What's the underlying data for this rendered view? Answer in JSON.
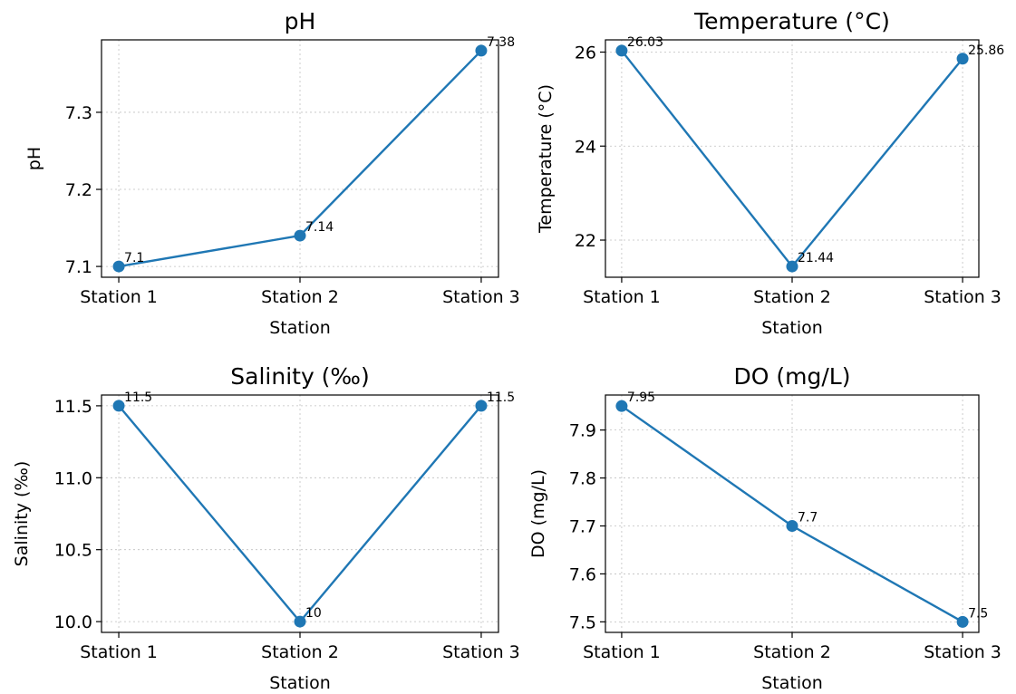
{
  "figure": {
    "line_color": "#1f77b4",
    "grid": true
  },
  "chart_data": [
    {
      "type": "line",
      "title": "pH",
      "xlabel": "Station",
      "ylabel": "pH",
      "categories": [
        "Station 1",
        "Station 2",
        "Station 3"
      ],
      "values": [
        7.1,
        7.14,
        7.38
      ],
      "data_labels": [
        "7.1",
        "7.14",
        "7.38"
      ],
      "ylim": [
        7.086,
        7.394
      ],
      "yticks": [
        7.1,
        7.2,
        7.3
      ],
      "ytick_labels": [
        "7.1",
        "7.2",
        "7.3"
      ]
    },
    {
      "type": "line",
      "title": "Temperature (°C)",
      "xlabel": "Station",
      "ylabel": "Temperature (°C)",
      "categories": [
        "Station 1",
        "Station 2",
        "Station 3"
      ],
      "values": [
        26.03,
        21.44,
        25.86
      ],
      "data_labels": [
        "26.03",
        "21.44",
        "25.86"
      ],
      "ylim": [
        21.21,
        26.26
      ],
      "yticks": [
        22,
        24,
        26
      ],
      "ytick_labels": [
        "22",
        "24",
        "26"
      ]
    },
    {
      "type": "line",
      "title": "Salinity (‰)",
      "xlabel": "Station",
      "ylabel": "Salinity (‰)",
      "categories": [
        "Station 1",
        "Station 2",
        "Station 3"
      ],
      "values": [
        11.5,
        10,
        11.5
      ],
      "data_labels": [
        "11.5",
        "10",
        "11.5"
      ],
      "ylim": [
        9.925,
        11.575
      ],
      "yticks": [
        10.0,
        10.5,
        11.0,
        11.5
      ],
      "ytick_labels": [
        "10.0",
        "10.5",
        "11.0",
        "11.5"
      ]
    },
    {
      "type": "line",
      "title": "DO (mg/L)",
      "xlabel": "Station",
      "ylabel": "DO (mg/L)",
      "categories": [
        "Station 1",
        "Station 2",
        "Station 3"
      ],
      "values": [
        7.95,
        7.7,
        7.5
      ],
      "data_labels": [
        "7.95",
        "7.7",
        "7.5"
      ],
      "ylim": [
        7.478,
        7.973
      ],
      "yticks": [
        7.5,
        7.6,
        7.7,
        7.8,
        7.9
      ],
      "ytick_labels": [
        "7.5",
        "7.6",
        "7.7",
        "7.8",
        "7.9"
      ]
    }
  ]
}
